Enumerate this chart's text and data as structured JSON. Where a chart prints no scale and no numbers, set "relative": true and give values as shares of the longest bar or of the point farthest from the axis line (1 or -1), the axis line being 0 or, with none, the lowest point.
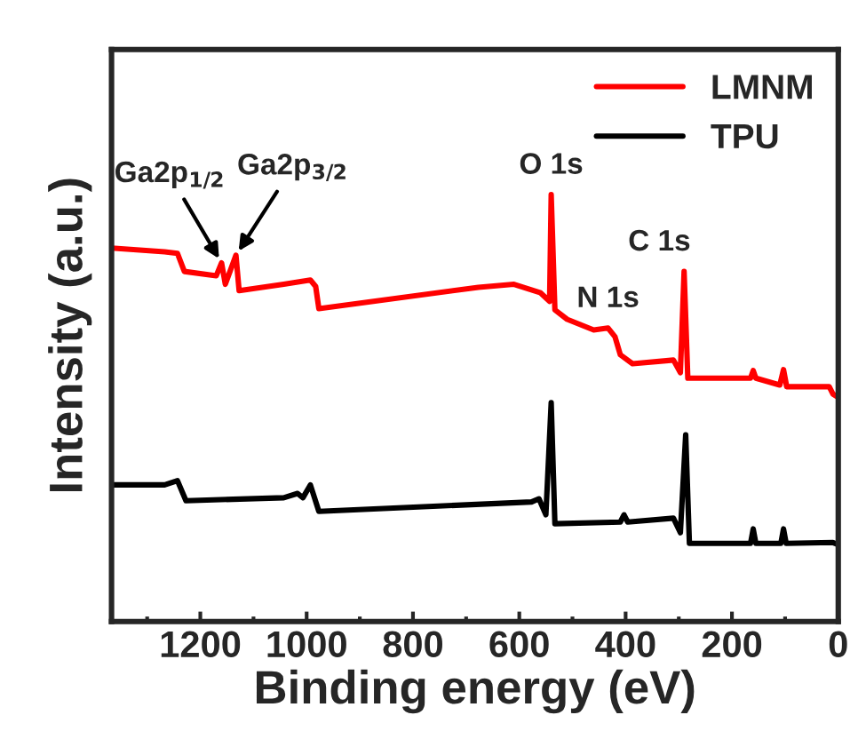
{
  "chart_data": {
    "type": "line",
    "xlabel": "Binding energy (eV)",
    "ylabel": "Intensity (a.u.)",
    "relative": true,
    "xlim": [
      1367,
      0
    ],
    "xticks": [
      1200,
      1000,
      800,
      600,
      400,
      200,
      0
    ],
    "legend": "top right",
    "grid": false,
    "series": [
      {
        "name": "LMNM",
        "color": "#ff0000",
        "x": [
          1367,
          1267,
          1243,
          1230,
          1170,
          1160,
          1153,
          1133,
          1127,
          1043,
          993,
          983,
          977,
          677,
          610,
          560,
          543,
          540,
          533,
          510,
          460,
          433,
          420,
          410,
          387,
          310,
          297,
          290,
          283,
          165,
          160,
          155,
          110,
          103,
          97,
          17,
          10,
          0
        ],
        "values": [
          0.875,
          0.866,
          0.8625,
          0.82,
          0.81,
          0.84,
          0.79,
          0.858,
          0.775,
          0.79,
          0.8,
          0.785,
          0.733,
          0.783,
          0.79,
          0.77,
          0.75,
          1.0,
          0.73,
          0.708,
          0.683,
          0.6875,
          0.667,
          0.625,
          0.604,
          0.6125,
          0.583,
          0.82,
          0.57,
          0.57,
          0.588,
          0.57,
          0.554,
          0.59,
          0.55,
          0.55,
          0.533,
          0.525
        ]
      },
      {
        "name": "TPU",
        "color": "#000000",
        "x": [
          1367,
          1267,
          1243,
          1227,
          1043,
          1017,
          1007,
          993,
          977,
          577,
          563,
          550,
          540,
          533,
          410,
          403,
          396,
          310,
          297,
          287,
          280,
          165,
          160,
          155,
          108,
          103,
          98,
          10,
          0
        ],
        "values": [
          0.32,
          0.32,
          0.33,
          0.283,
          0.29,
          0.3,
          0.29,
          0.32,
          0.258,
          0.28,
          0.2875,
          0.25,
          0.5125,
          0.229,
          0.233,
          0.25,
          0.233,
          0.242,
          0.208,
          0.4375,
          0.183,
          0.183,
          0.217,
          0.183,
          0.183,
          0.217,
          0.183,
          0.185,
          0.18
        ]
      }
    ],
    "annotations": [
      {
        "text": "Ga2p$_{1/2}$",
        "x": 1160,
        "y": 0.84
      },
      {
        "text": "Ga2p$_{3/2}$",
        "x": 1133,
        "y": 0.858
      },
      {
        "text": "O 1s",
        "x": 540,
        "y": 1.0
      },
      {
        "text": "N 1s",
        "x": 433,
        "y": 0.6875
      },
      {
        "text": "C 1s",
        "x": 290,
        "y": 0.82
      }
    ]
  }
}
